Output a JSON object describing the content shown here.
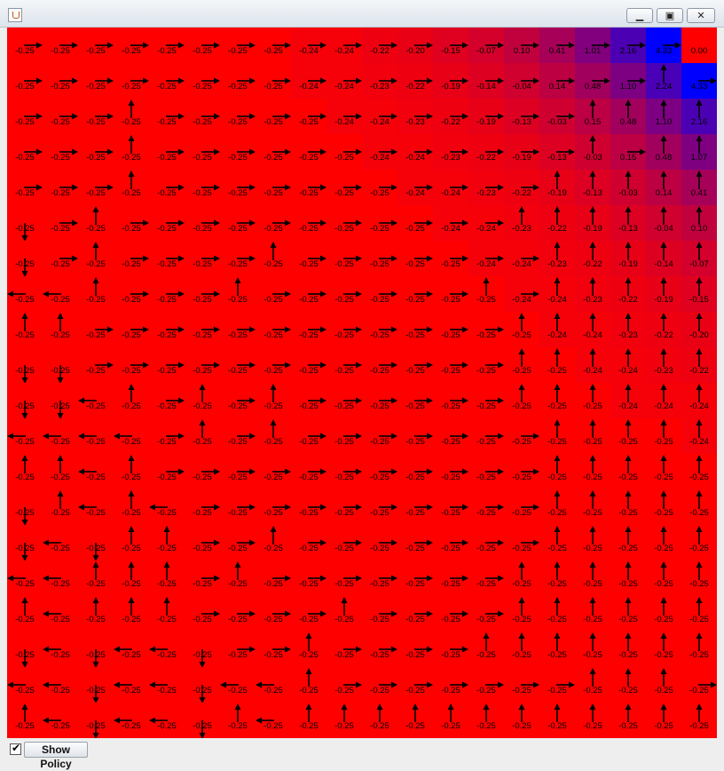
{
  "window": {
    "controls": {
      "minimize_icon": "minimize-icon",
      "maximize_icon": "maximize-icon",
      "close_icon": "close-icon"
    },
    "app_icon": "java-icon"
  },
  "grid": {
    "rows": 20,
    "cols": 20,
    "color_low": "#ff0000",
    "color_high": "#0000ff",
    "values": [
      [
        "-0.25",
        "-0.25",
        "-0.25",
        "-0.25",
        "-0.25",
        "-0.25",
        "-0.25",
        "-0.25",
        "-0.24",
        "-0.24",
        "-0.22",
        "-0.20",
        "-0.15",
        "-0.07",
        "0.10",
        "0.41",
        "1.01",
        "2.16",
        "4.33",
        "0.00"
      ],
      [
        "-0.25",
        "-0.25",
        "-0.25",
        "-0.25",
        "-0.25",
        "-0.25",
        "-0.25",
        "-0.25",
        "-0.24",
        "-0.24",
        "-0.23",
        "-0.22",
        "-0.19",
        "-0.14",
        "-0.04",
        "0.14",
        "0.48",
        "1.10",
        "2.24",
        "4.33"
      ],
      [
        "-0.25",
        "-0.25",
        "-0.25",
        "-0.25",
        "-0.25",
        "-0.25",
        "-0.25",
        "-0.25",
        "-0.25",
        "-0.24",
        "-0.24",
        "-0.23",
        "-0.22",
        "-0.19",
        "-0.13",
        "-0.03",
        "0.15",
        "0.48",
        "1.10",
        "2.16"
      ],
      [
        "-0.25",
        "-0.25",
        "-0.25",
        "-0.25",
        "-0.25",
        "-0.25",
        "-0.25",
        "-0.25",
        "-0.25",
        "-0.25",
        "-0.24",
        "-0.24",
        "-0.23",
        "-0.22",
        "-0.19",
        "-0.13",
        "-0.03",
        "0.15",
        "0.48",
        "1.07"
      ],
      [
        "-0.25",
        "-0.25",
        "-0.25",
        "-0.25",
        "-0.25",
        "-0.25",
        "-0.25",
        "-0.25",
        "-0.25",
        "-0.25",
        "-0.25",
        "-0.24",
        "-0.24",
        "-0.23",
        "-0.22",
        "-0.19",
        "-0.13",
        "-0.03",
        "0.14",
        "0.41"
      ],
      [
        "-0.25",
        "-0.25",
        "-0.25",
        "-0.25",
        "-0.25",
        "-0.25",
        "-0.25",
        "-0.25",
        "-0.25",
        "-0.25",
        "-0.25",
        "-0.25",
        "-0.24",
        "-0.24",
        "-0.23",
        "-0.22",
        "-0.19",
        "-0.13",
        "-0.04",
        "0.10"
      ],
      [
        "-0.25",
        "-0.25",
        "-0.25",
        "-0.25",
        "-0.25",
        "-0.25",
        "-0.25",
        "-0.25",
        "-0.25",
        "-0.25",
        "-0.25",
        "-0.25",
        "-0.25",
        "-0.24",
        "-0.24",
        "-0.23",
        "-0.22",
        "-0.19",
        "-0.14",
        "-0.07"
      ],
      [
        "-0.25",
        "-0.25",
        "-0.25",
        "-0.25",
        "-0.25",
        "-0.25",
        "-0.25",
        "-0.25",
        "-0.25",
        "-0.25",
        "-0.25",
        "-0.25",
        "-0.25",
        "-0.25",
        "-0.24",
        "-0.24",
        "-0.23",
        "-0.22",
        "-0.19",
        "-0.15"
      ],
      [
        "-0.25",
        "-0.25",
        "-0.25",
        "-0.25",
        "-0.25",
        "-0.25",
        "-0.25",
        "-0.25",
        "-0.25",
        "-0.25",
        "-0.25",
        "-0.25",
        "-0.25",
        "-0.25",
        "-0.25",
        "-0.24",
        "-0.24",
        "-0.23",
        "-0.22",
        "-0.20"
      ],
      [
        "-0.25",
        "-0.25",
        "-0.25",
        "-0.25",
        "-0.25",
        "-0.25",
        "-0.25",
        "-0.25",
        "-0.25",
        "-0.25",
        "-0.25",
        "-0.25",
        "-0.25",
        "-0.25",
        "-0.25",
        "-0.25",
        "-0.24",
        "-0.24",
        "-0.23",
        "-0.22"
      ],
      [
        "-0.25",
        "-0.25",
        "-0.25",
        "-0.25",
        "-0.25",
        "-0.25",
        "-0.25",
        "-0.25",
        "-0.25",
        "-0.25",
        "-0.25",
        "-0.25",
        "-0.25",
        "-0.25",
        "-0.25",
        "-0.25",
        "-0.25",
        "-0.24",
        "-0.24",
        "-0.24"
      ],
      [
        "-0.25",
        "-0.25",
        "-0.25",
        "-0.25",
        "-0.25",
        "-0.25",
        "-0.25",
        "-0.25",
        "-0.25",
        "-0.25",
        "-0.25",
        "-0.25",
        "-0.25",
        "-0.25",
        "-0.25",
        "-0.25",
        "-0.25",
        "-0.25",
        "-0.25",
        "-0.24"
      ],
      [
        "-0.25",
        "-0.25",
        "-0.25",
        "-0.25",
        "-0.25",
        "-0.25",
        "-0.25",
        "-0.25",
        "-0.25",
        "-0.25",
        "-0.25",
        "-0.25",
        "-0.25",
        "-0.25",
        "-0.25",
        "-0.25",
        "-0.25",
        "-0.25",
        "-0.25",
        "-0.25"
      ],
      [
        "-0.25",
        "-0.25",
        "-0.25",
        "-0.25",
        "-0.25",
        "-0.25",
        "-0.25",
        "-0.25",
        "-0.25",
        "-0.25",
        "-0.25",
        "-0.25",
        "-0.25",
        "-0.25",
        "-0.25",
        "-0.25",
        "-0.25",
        "-0.25",
        "-0.25",
        "-0.25"
      ],
      [
        "-0.25",
        "-0.25",
        "-0.25",
        "-0.25",
        "-0.25",
        "-0.25",
        "-0.25",
        "-0.25",
        "-0.25",
        "-0.25",
        "-0.25",
        "-0.25",
        "-0.25",
        "-0.25",
        "-0.25",
        "-0.25",
        "-0.25",
        "-0.25",
        "-0.25",
        "-0.25"
      ],
      [
        "-0.25",
        "-0.25",
        "-0.25",
        "-0.25",
        "-0.25",
        "-0.25",
        "-0.25",
        "-0.25",
        "-0.25",
        "-0.25",
        "-0.25",
        "-0.25",
        "-0.25",
        "-0.25",
        "-0.25",
        "-0.25",
        "-0.25",
        "-0.25",
        "-0.25",
        "-0.25"
      ],
      [
        "-0.25",
        "-0.25",
        "-0.25",
        "-0.25",
        "-0.25",
        "-0.25",
        "-0.25",
        "-0.25",
        "-0.25",
        "-0.25",
        "-0.25",
        "-0.25",
        "-0.25",
        "-0.25",
        "-0.25",
        "-0.25",
        "-0.25",
        "-0.25",
        "-0.25",
        "-0.25"
      ],
      [
        "-0.25",
        "-0.25",
        "-0.25",
        "-0.25",
        "-0.25",
        "-0.25",
        "-0.25",
        "-0.25",
        "-0.25",
        "-0.25",
        "-0.25",
        "-0.25",
        "-0.25",
        "-0.25",
        "-0.25",
        "-0.25",
        "-0.25",
        "-0.25",
        "-0.25",
        "-0.25"
      ],
      [
        "-0.25",
        "-0.25",
        "-0.25",
        "-0.25",
        "-0.25",
        "-0.25",
        "-0.25",
        "-0.25",
        "-0.25",
        "-0.25",
        "-0.25",
        "-0.25",
        "-0.25",
        "-0.25",
        "-0.25",
        "-0.25",
        "-0.25",
        "-0.25",
        "-0.25",
        "-0.25"
      ],
      [
        "-0.25",
        "-0.25",
        "-0.25",
        "-0.25",
        "-0.25",
        "-0.25",
        "-0.25",
        "-0.25",
        "-0.25",
        "-0.25",
        "-0.25",
        "-0.25",
        "-0.25",
        "-0.25",
        "-0.25",
        "-0.25",
        "-0.25",
        "-0.25",
        "-0.25",
        "-0.25"
      ]
    ],
    "policy": [
      "RRRRRRRRRRRRRRRRRRRN",
      "RRRRRRRRRRRRRRRRRRUR",
      "RRRURRRRRRRRRRRRUUUU",
      "RRRURRRRRRRRRRRRURUU",
      "RRRURRRRRRRRRRRUUUUU",
      "DRURRRRRRRRRRRUUUUUU",
      "DRURRRRURRRRRRRUUUUU",
      "LLURRRURRRRRRURUUUUU",
      "UURRRRRRRRRRRRUUUUUU",
      "DDRRRRRRRRRRRRUUUUUU",
      "DDLURURURRRRRRUUUUUU",
      "LLLLRURURRRRRRRUUUUU",
      "UULURRRRRRRRRRRUUUUU",
      "DULULRRRRRRRRRRUUUUU",
      "DLDUURRURRRRRRRUUUUU",
      "LLUUURURRRRRRRUUUUUU",
      "ULUUURRRRURRRRUUUUUU",
      "DLDLLDRRURRRRUUUUUUU",
      "LLDLLDLLURRRRRRRUUUR",
      "ULDLLDULUUUUUUUUUUUU"
    ]
  },
  "controls": {
    "show_policy_checked": true,
    "check_mark": "✔",
    "show_policy_label": "Show Policy"
  }
}
